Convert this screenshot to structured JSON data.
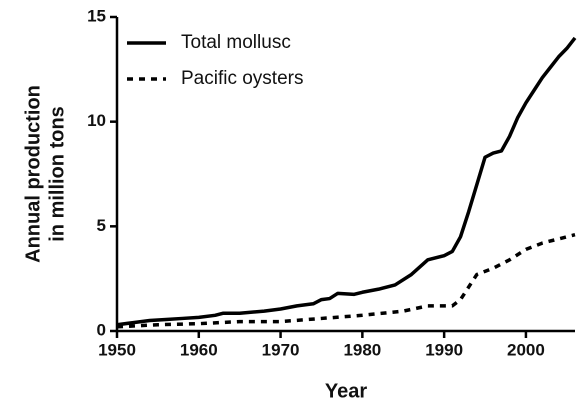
{
  "chart_data": {
    "type": "line",
    "x_label": "Year",
    "y_label": [
      "Annual production",
      "in million tons"
    ],
    "series": [
      {
        "name": "Total mollusc",
        "color": "#000000",
        "dash": false,
        "x": [
          1950,
          1952,
          1954,
          1956,
          1958,
          1960,
          1962,
          1963,
          1965,
          1968,
          1970,
          1972,
          1974,
          1975,
          1976,
          1977,
          1979,
          1980,
          1982,
          1984,
          1986,
          1988,
          1990,
          1991,
          1992,
          1993,
          1994,
          1995,
          1996,
          1997,
          1998,
          1999,
          2000,
          2001,
          2002,
          2003,
          2004,
          2005,
          2006
        ],
        "values": [
          0.3,
          0.4,
          0.5,
          0.55,
          0.6,
          0.65,
          0.75,
          0.85,
          0.85,
          0.95,
          1.05,
          1.2,
          1.3,
          1.5,
          1.55,
          1.8,
          1.75,
          1.85,
          2.0,
          2.2,
          2.7,
          3.4,
          3.6,
          3.8,
          4.5,
          5.7,
          7.0,
          8.3,
          8.5,
          8.6,
          9.3,
          10.2,
          10.9,
          11.5,
          12.1,
          12.6,
          13.1,
          13.5,
          14.0
        ]
      },
      {
        "name": "Pacific oysters",
        "color": "#000000",
        "dash": true,
        "x": [
          1950,
          1955,
          1960,
          1965,
          1970,
          1975,
          1980,
          1985,
          1988,
          1991,
          1992,
          1994,
          1996,
          1998,
          2000,
          2002,
          2004,
          2006
        ],
        "values": [
          0.2,
          0.3,
          0.35,
          0.45,
          0.45,
          0.6,
          0.75,
          0.95,
          1.2,
          1.2,
          1.5,
          2.7,
          3.0,
          3.4,
          3.9,
          4.2,
          4.4,
          4.6
        ]
      }
    ],
    "xlim": [
      1950,
      2006
    ],
    "xticks": [
      1950,
      1960,
      1970,
      1980,
      1990,
      2000
    ],
    "ylim": [
      0,
      15
    ],
    "yticks": [
      0,
      5,
      10,
      15
    ],
    "legend": "upper-left",
    "grid": false
  }
}
